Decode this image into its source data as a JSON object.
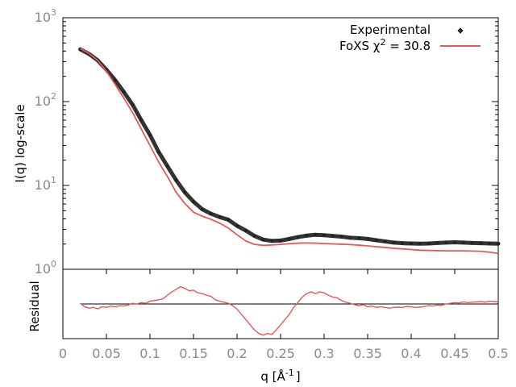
{
  "chart_data": [
    {
      "type": "scatter",
      "title": "",
      "xlabel": "",
      "ylabel": "I(q) log-scale",
      "yscale": "log",
      "xlim": [
        0,
        0.5
      ],
      "ylim": [
        1,
        1000
      ],
      "y_ticks": [
        {
          "value": 1,
          "base": "10",
          "exp": "0"
        },
        {
          "value": 10,
          "base": "10",
          "exp": "1"
        },
        {
          "value": 100,
          "base": "10",
          "exp": "2"
        },
        {
          "value": 1000,
          "base": "10",
          "exp": "3"
        }
      ],
      "legend_position": "top-right",
      "series": [
        {
          "name": "Experimental",
          "style": "points",
          "color": "#333333",
          "x": [
            0.02,
            0.03,
            0.04,
            0.05,
            0.06,
            0.07,
            0.08,
            0.09,
            0.1,
            0.11,
            0.12,
            0.13,
            0.14,
            0.15,
            0.16,
            0.17,
            0.18,
            0.19,
            0.2,
            0.21,
            0.22,
            0.23,
            0.24,
            0.25,
            0.26,
            0.27,
            0.28,
            0.29,
            0.3,
            0.31,
            0.32,
            0.33,
            0.34,
            0.35,
            0.36,
            0.37,
            0.38,
            0.39,
            0.4,
            0.41,
            0.42,
            0.43,
            0.44,
            0.45,
            0.46,
            0.47,
            0.48,
            0.49,
            0.5
          ],
          "y": [
            420,
            370,
            310,
            240,
            180,
            130,
            92,
            60,
            40,
            25,
            17,
            11.6,
            8.3,
            6.4,
            5.2,
            4.6,
            4.2,
            3.9,
            3.3,
            2.9,
            2.5,
            2.26,
            2.18,
            2.2,
            2.3,
            2.42,
            2.52,
            2.58,
            2.55,
            2.5,
            2.45,
            2.38,
            2.35,
            2.3,
            2.22,
            2.15,
            2.08,
            2.05,
            2.03,
            2.02,
            2.03,
            2.06,
            2.08,
            2.1,
            2.08,
            2.06,
            2.05,
            2.03,
            2.02
          ]
        },
        {
          "name": "FoXS χ",
          "name_sup": "2",
          "name_suffix": " = 30.8",
          "style": "line",
          "color": "#e05a5a",
          "x": [
            0.02,
            0.03,
            0.04,
            0.05,
            0.06,
            0.07,
            0.08,
            0.09,
            0.1,
            0.11,
            0.12,
            0.13,
            0.14,
            0.15,
            0.16,
            0.17,
            0.18,
            0.19,
            0.2,
            0.21,
            0.22,
            0.23,
            0.24,
            0.25,
            0.26,
            0.27,
            0.28,
            0.29,
            0.3,
            0.31,
            0.32,
            0.33,
            0.34,
            0.35,
            0.36,
            0.37,
            0.38,
            0.39,
            0.4,
            0.41,
            0.42,
            0.43,
            0.44,
            0.45,
            0.46,
            0.47,
            0.48,
            0.49,
            0.5
          ],
          "y": [
            430,
            375,
            310,
            230,
            160,
            110,
            74,
            47,
            30,
            19,
            12.8,
            8.3,
            6.1,
            4.8,
            4.3,
            3.95,
            3.55,
            3.1,
            2.58,
            2.18,
            1.98,
            1.93,
            1.95,
            1.98,
            2.02,
            2.05,
            2.06,
            2.05,
            2.03,
            2.01,
            1.99,
            1.97,
            1.94,
            1.9,
            1.86,
            1.82,
            1.78,
            1.75,
            1.72,
            1.69,
            1.68,
            1.67,
            1.66,
            1.66,
            1.66,
            1.65,
            1.64,
            1.6,
            1.55
          ]
        }
      ]
    },
    {
      "type": "line",
      "title": "",
      "xlabel": "q [Å",
      "xlabel_sup": "-1",
      "xlabel_suffix": "]",
      "ylabel": "Residual",
      "xlim": [
        0,
        0.5
      ],
      "ylim": [
        -1,
        1
      ],
      "x_ticks": [
        "0",
        "0.05",
        "0.1",
        "0.15",
        "0.2",
        "0.25",
        "0.3",
        "0.35",
        "0.4",
        "0.45",
        "0.5"
      ],
      "reference_line": 0,
      "series": [
        {
          "style": "line",
          "color": "#e05a5a",
          "x": [
            0.02,
            0.025,
            0.03,
            0.035,
            0.04,
            0.045,
            0.05,
            0.055,
            0.06,
            0.065,
            0.07,
            0.075,
            0.08,
            0.085,
            0.09,
            0.095,
            0.1,
            0.105,
            0.11,
            0.115,
            0.12,
            0.125,
            0.13,
            0.135,
            0.14,
            0.145,
            0.15,
            0.155,
            0.16,
            0.165,
            0.17,
            0.175,
            0.18,
            0.185,
            0.19,
            0.195,
            0.2,
            0.205,
            0.21,
            0.215,
            0.22,
            0.225,
            0.23,
            0.235,
            0.24,
            0.245,
            0.25,
            0.255,
            0.26,
            0.265,
            0.27,
            0.275,
            0.28,
            0.285,
            0.29,
            0.295,
            0.3,
            0.305,
            0.31,
            0.315,
            0.32,
            0.325,
            0.33,
            0.335,
            0.34,
            0.345,
            0.35,
            0.355,
            0.36,
            0.365,
            0.37,
            0.375,
            0.38,
            0.385,
            0.39,
            0.395,
            0.4,
            0.405,
            0.41,
            0.415,
            0.42,
            0.425,
            0.43,
            0.435,
            0.44,
            0.445,
            0.45,
            0.455,
            0.46,
            0.465,
            0.47,
            0.475,
            0.48,
            0.485,
            0.49,
            0.495,
            0.5
          ],
          "y": [
            0.02,
            -0.08,
            -0.12,
            -0.1,
            -0.14,
            -0.08,
            -0.1,
            -0.06,
            -0.08,
            -0.05,
            -0.06,
            -0.03,
            0.02,
            0.0,
            0.04,
            0.02,
            0.08,
            0.1,
            0.12,
            0.15,
            0.25,
            0.35,
            0.42,
            0.5,
            0.45,
            0.38,
            0.4,
            0.32,
            0.3,
            0.25,
            0.22,
            0.12,
            0.08,
            0.05,
            0.02,
            -0.05,
            -0.15,
            -0.3,
            -0.45,
            -0.6,
            -0.75,
            -0.85,
            -0.9,
            -0.85,
            -0.88,
            -0.75,
            -0.6,
            -0.45,
            -0.3,
            -0.1,
            0.05,
            0.2,
            0.3,
            0.35,
            0.3,
            0.35,
            0.32,
            0.25,
            0.2,
            0.18,
            0.1,
            0.05,
            0.02,
            -0.02,
            -0.05,
            -0.02,
            -0.08,
            -0.06,
            -0.1,
            -0.08,
            -0.1,
            -0.12,
            -0.1,
            -0.09,
            -0.1,
            -0.07,
            -0.08,
            -0.1,
            -0.09,
            -0.07,
            -0.05,
            -0.06,
            -0.03,
            -0.04,
            0.0,
            0.02,
            0.04,
            0.03,
            0.06,
            0.04,
            0.05,
            0.06,
            0.07,
            0.05,
            0.08,
            0.07,
            0.06
          ]
        }
      ]
    }
  ]
}
